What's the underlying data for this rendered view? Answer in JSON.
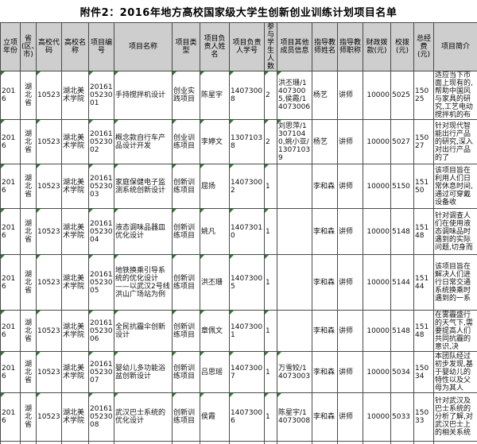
{
  "title": "附件2：2016年地方高校国家级大学生创新创业训练计划项目名单",
  "error_indicator_color": "#2e7d32",
  "table": {
    "green_triangle_columns": [
      "year",
      "school_code",
      "project_no",
      "project_name",
      "project_type",
      "leader_name",
      "leader_id",
      "participants",
      "members"
    ],
    "columns": [
      {
        "key": "year",
        "label": "立项年份"
      },
      {
        "key": "province",
        "label": "省(区、市)"
      },
      {
        "key": "school_code",
        "label": "高校代码"
      },
      {
        "key": "school_name",
        "label": "高校名称"
      },
      {
        "key": "project_no",
        "label": "项目编号"
      },
      {
        "key": "project_name",
        "label": "项目名称"
      },
      {
        "key": "project_type",
        "label": "项目类型"
      },
      {
        "key": "leader_name",
        "label": "项目负责人姓名"
      },
      {
        "key": "leader_id",
        "label": "项目负责人学号"
      },
      {
        "key": "participants",
        "label": "参与学生人数"
      },
      {
        "key": "members",
        "label": "项目其他成员信息"
      },
      {
        "key": "teacher_name",
        "label": "指导教师姓名"
      },
      {
        "key": "teacher_title",
        "label": "指导教师职称"
      },
      {
        "key": "fiscal_fund",
        "label": "财政拨款(元)"
      },
      {
        "key": "school_fund",
        "label": "校拨(元)"
      },
      {
        "key": "total_fund",
        "label": "总经费(元)"
      },
      {
        "key": "summary",
        "label": "项目简介"
      }
    ],
    "rows": [
      {
        "year": "2016",
        "province": "湖北省",
        "school_code": "10523",
        "school_name": "湖北美术学院",
        "project_no": "201610523001",
        "project_name": "手持搅拌机设计",
        "project_type": "创业实践项目",
        "leader_name": "陈星宇",
        "leader_id": "14073008",
        "participants": "2",
        "members": "洪丕珊/14073005,侯霞/14073006",
        "teacher_name": "杨艺",
        "teacher_title": "讲师",
        "fiscal_fund": "10000",
        "school_fund": "5025",
        "total_fund": "15025",
        "summary": "适应当下市面上现有的,帮助中国风与家具的研究,工艺电动搅拌机的布"
      },
      {
        "year": "2016",
        "province": "湖北省",
        "school_code": "10523",
        "school_name": "湖北美术学院",
        "project_no": "201610523002",
        "project_name": "概念款自行车产品设计开发",
        "project_type": "创业训练项目",
        "leader_name": "李婷文",
        "leader_id": "13071038",
        "participants": "2",
        "members": "刘思萍/13071040,姚小亚/13071039",
        "teacher_name": "杨艺",
        "teacher_title": "讲师",
        "fiscal_fund": "10000",
        "school_fund": "5027",
        "total_fund": "15027",
        "summary": "针对现代智能出行产品的研究,深入对出行产品的了"
      },
      {
        "year": "2016",
        "province": "湖北省",
        "school_code": "10523",
        "school_name": "湖北美术学院",
        "project_no": "201610523003",
        "project_name": "家庭保健电子监测系统创新设计",
        "project_type": "创新训练项目",
        "leader_name": "屈扬",
        "leader_id": "14073002",
        "participants": "1",
        "members": "",
        "teacher_name": "李和森",
        "teacher_title": "讲师",
        "fiscal_fund": "10000",
        "school_fund": "5150",
        "total_fund": "15150",
        "summary": "该项目旨在利用人们日常休息时间,通过可穿戴设备收"
      },
      {
        "year": "2016",
        "province": "湖北省",
        "school_code": "10523",
        "school_name": "湖北美术学院",
        "project_no": "201610523004",
        "project_name": "液态调味品器皿优化设计",
        "project_type": "创新训练项目",
        "leader_name": "姚凡",
        "leader_id": "14073010",
        "participants": "1",
        "members": "",
        "teacher_name": "李和森",
        "teacher_title": "讲师",
        "fiscal_fund": "10000",
        "school_fund": "5148",
        "total_fund": "15148",
        "summary": "针对调查人们在使用液态调味品时遇到的实际问题,切身而"
      },
      {
        "year": "2016",
        "province": "湖北省",
        "school_code": "10523",
        "school_name": "湖北美术学院",
        "project_no": "201610523005",
        "project_name": "地铁换乘引导系统的优化设计——以武汉2号线洪山广场站为例",
        "project_type": "创新训练项目",
        "leader_name": "洪丕珊",
        "leader_id": "14073005",
        "participants": "1",
        "members": "",
        "teacher_name": "李和森",
        "teacher_title": "讲师",
        "fiscal_fund": "10000",
        "school_fund": "5144",
        "total_fund": "15144",
        "summary": "该项目旨在解决人们进行日常交通系统换乘时遇到的一系"
      },
      {
        "year": "2016",
        "province": "湖北省",
        "school_code": "10523",
        "school_name": "湖北美术学院",
        "project_no": "201610523006",
        "project_name": "全民抗霾伞创新设计",
        "project_type": "创新训练项目",
        "leader_name": "章佩文",
        "leader_id": "14073001",
        "participants": "1",
        "members": "",
        "teacher_name": "李和森",
        "teacher_title": "讲师",
        "fiscal_fund": "10000",
        "school_fund": "5148",
        "total_fund": "15148",
        "summary": "在雾霾盛行的天气下,需要提高人们共同抗霾的意识,决"
      },
      {
        "year": "2016",
        "province": "湖北省",
        "school_code": "10523",
        "school_name": "湖北美术学院",
        "project_no": "201610523007",
        "project_name": "婴幼儿多功能浴盆创新设计",
        "project_type": "创新训练项目",
        "leader_name": "吕思瑶",
        "leader_id": "14073007",
        "participants": "1",
        "members": "万雪姣/14073003",
        "teacher_name": "李和森",
        "teacher_title": "讲师",
        "fiscal_fund": "10000",
        "school_fund": "5034",
        "total_fund": "15034",
        "summary": "本团队经过初步发现,基于婴幼儿的特性以及父母为其人"
      },
      {
        "year": "2016",
        "province": "湖北省",
        "school_code": "10523",
        "school_name": "湖北美术学院",
        "project_no": "201610523008",
        "project_name": "武汉巴士系统的优化设计",
        "project_type": "创新训练项目",
        "leader_name": "侯霞",
        "leader_id": "14073006",
        "participants": "1",
        "members": "陈星宇/14073008",
        "teacher_name": "李和森",
        "teacher_title": "讲师",
        "fiscal_fund": "10000",
        "school_fund": "5033",
        "total_fund": "15033",
        "summary": "针对武汉及巴士系统的分析了解,对武汉巴士上的相关系统"
      }
    ]
  }
}
